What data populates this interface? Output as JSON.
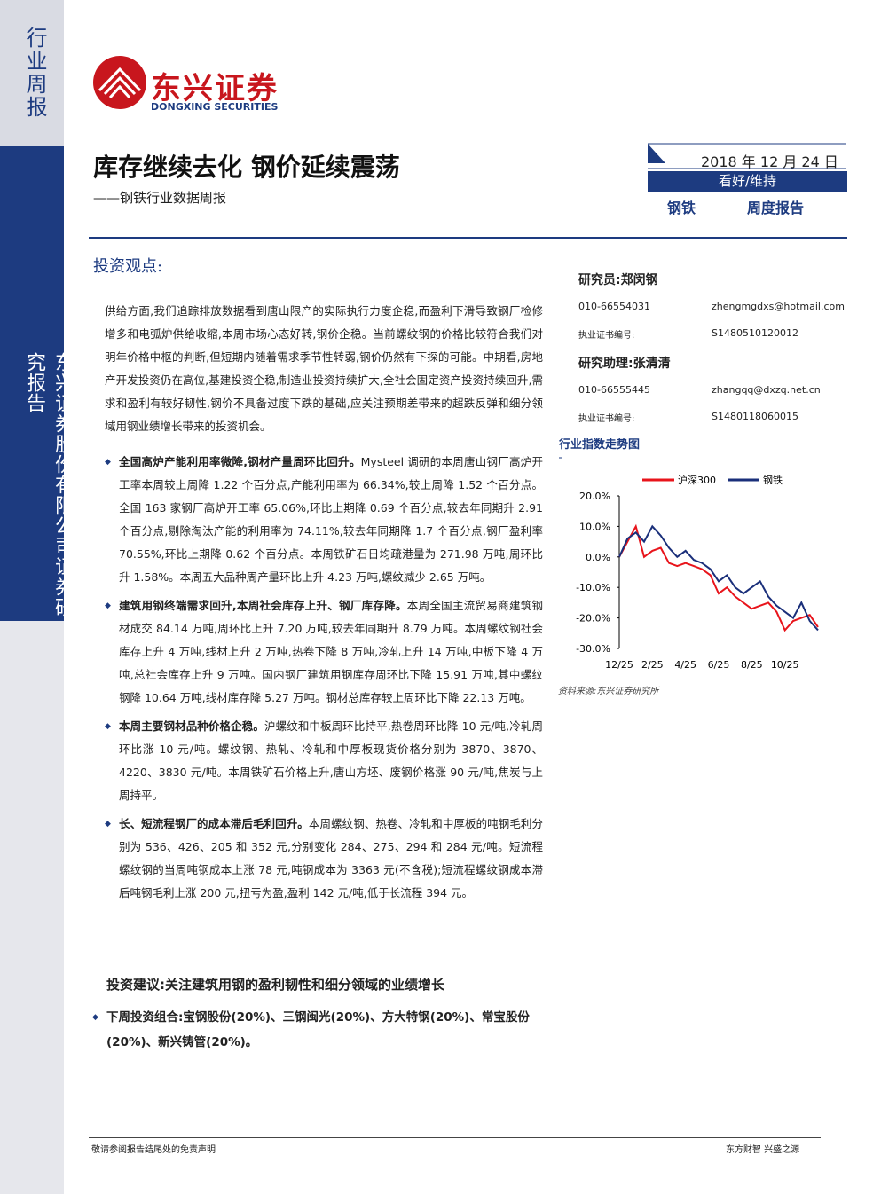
{
  "sidebar": {
    "report_kind": "行业周报",
    "company_label": "东兴证券股份有限公司证券研究报告"
  },
  "header": {
    "logo_name": "东兴证券",
    "logo_english": "DONGXING SECURITIES",
    "title": "库存继续去化 钢价延续震荡",
    "subtitle": "——钢铁行业数据周报",
    "date": "2018 年 12 月 24 日",
    "rating": "看好/维持",
    "industry": "钢铁",
    "report_type": "周度报告"
  },
  "section_heading": "投资观点:",
  "analysts": [
    {
      "role": "研究员:郑闵钢",
      "phone": "010-66554031",
      "email": "zhengmgdxs@hotmail.com",
      "cert_label": "执业证书编号:",
      "cert": "S1480510120012"
    },
    {
      "role": "研究助理:张清清",
      "phone": "010-66555445",
      "email": "zhangqq@dxzq.net.cn",
      "cert_label": "执业证书编号:",
      "cert": "S1480118060015"
    }
  ],
  "intro": "供给方面,我们追踪排放数据看到唐山限产的实际执行力度企稳,而盈利下滑导致钢厂检修增多和电弧炉供给收缩,本周市场心态好转,钢价企稳。当前螺纹钢的价格比较符合我们对明年价格中枢的判断,但短期内随着需求季节性转弱,钢价仍然有下探的可能。中期看,房地产开发投资仍在高位,基建投资企稳,制造业投资持续扩大,全社会固定资产投资持续回升,需求和盈利有较好韧性,钢价不具备过度下跌的基础,应关注预期差带来的超跌反弹和细分领域用钢业绩增长带来的投资机会。",
  "bullets": [
    {
      "lead": "全国高炉产能利用率微降,钢材产量周环比回升。",
      "text": "Mysteel 调研的本周唐山钢厂高炉开工率本周较上周降 1.22 个百分点,产能利用率为 66.34%,较上周降 1.52 个百分点。全国 163 家钢厂高炉开工率 65.06%,环比上期降 0.69 个百分点,较去年同期升 2.91 个百分点,剔除淘汰产能的利用率为 74.11%,较去年同期降 1.7 个百分点,钢厂盈利率 70.55%,环比上期降 0.62 个百分点。本周铁矿石日均疏港量为 271.98 万吨,周环比升 1.58%。本周五大品种周产量环比上升 4.23 万吨,螺纹减少 2.65 万吨。"
    },
    {
      "lead": "建筑用钢终端需求回升,本周社会库存上升、钢厂库存降。",
      "text": "本周全国主流贸易商建筑钢材成交 84.14 万吨,周环比上升 7.20 万吨,较去年同期升 8.79 万吨。本周螺纹钢社会库存上升 4 万吨,线材上升 2 万吨,热卷下降 8 万吨,冷轧上升 14 万吨,中板下降 4 万吨,总社会库存上升 9 万吨。国内钢厂建筑用钢库存周环比下降 15.91 万吨,其中螺纹钢降 10.64 万吨,线材库存降 5.27 万吨。钢材总库存较上周环比下降 22.13 万吨。"
    },
    {
      "lead": "本周主要钢材品种价格企稳。",
      "text": "沪螺纹和中板周环比持平,热卷周环比降 10 元/吨,冷轧周环比涨 10 元/吨。螺纹钢、热轧、冷轧和中厚板现货价格分别为 3870、3870、4220、3830 元/吨。本周铁矿石价格上升,唐山方坯、废钢价格涨 90 元/吨,焦炭与上周持平。"
    },
    {
      "lead": "长、短流程钢厂的成本滞后毛利回升。",
      "text": "本周螺纹钢、热卷、冷轧和中厚板的吨钢毛利分别为 536、426、205 和 352 元,分别变化 284、275、294 和 284 元/吨。短流程螺纹钢的当周吨钢成本上涨 78 元,吨钢成本为 3363 元(不含税);短流程螺纹钢成本滞后吨钢毛利上涨 200 元,扭亏为盈,盈利 142 元/吨,低于长流程 394 元。"
    }
  ],
  "recommendation": {
    "heading": "投资建议:关注建筑用钢的盈利韧性和细分领域的业绩增长",
    "portfolio": "下周投资组合:宝钢股份(20%)、三钢闽光(20%)、方大特钢(20%)、常宝股份(20%)、新兴铸管(20%)。"
  },
  "chart_data": {
    "type": "line",
    "title": "行业指数走势图",
    "categories": [
      "12/25",
      null,
      null,
      null,
      "2/25",
      null,
      null,
      null,
      "4/25",
      null,
      null,
      null,
      "6/25",
      null,
      null,
      null,
      "8/25",
      null,
      null,
      null,
      "10/25",
      null,
      null,
      null,
      null
    ],
    "series": [
      {
        "name": "沪深300",
        "color": "#e8141b",
        "values": [
          0,
          5,
          10,
          0,
          2,
          3,
          -2,
          -3,
          -2,
          -3,
          -4,
          -6,
          -12,
          -10,
          -13,
          -15,
          -17,
          -16,
          -15,
          -18,
          -24,
          -21,
          -20,
          -19,
          -23
        ]
      },
      {
        "name": "钢铁",
        "color": "#1a2f7a",
        "values": [
          0,
          6,
          8,
          5,
          10,
          7,
          3,
          0,
          2,
          -1,
          -2,
          -4,
          -8,
          -6,
          -10,
          -12,
          -10,
          -8,
          -13,
          -16,
          -18,
          -20,
          -15,
          -21,
          -24
        ]
      }
    ],
    "ylim": [
      -30,
      20
    ],
    "yticks": [
      {
        "value": 20,
        "label": "20.0%"
      },
      {
        "value": 10,
        "label": "10.0%"
      },
      {
        "value": 0,
        "label": "0.0%"
      },
      {
        "value": -10,
        "label": "-10.0%"
      },
      {
        "value": -20,
        "label": "-20.0%"
      },
      {
        "value": -30,
        "label": "-30.0%"
      }
    ],
    "source": "资料来源:东兴证券研究所"
  },
  "footer": {
    "left": "敬请参阅报告结尾处的免责声明",
    "right": "东方财智 兴盛之源"
  }
}
